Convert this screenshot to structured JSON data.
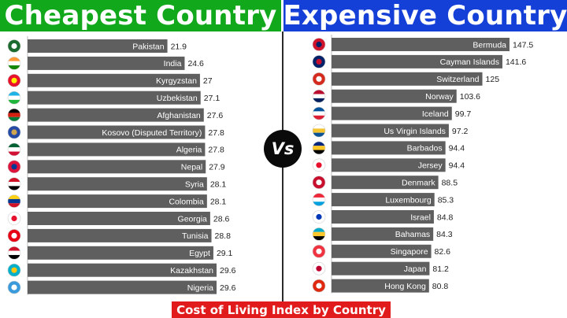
{
  "header": {
    "left_title": "Cheapest Country",
    "right_title": "Expensive Country",
    "vs_label": "Vs"
  },
  "footer": {
    "caption": "Cost of Living Index by Country"
  },
  "chart_data": [
    {
      "type": "bar",
      "orientation": "horizontal",
      "title": "Cheapest Country",
      "categories": [
        "Pakistan",
        "India",
        "Kyrgyzstan",
        "Uzbekistan",
        "Afghanistan",
        "Kosovo (Disputed Territory)",
        "Algeria",
        "Nepal",
        "Syria",
        "Colombia",
        "Georgia",
        "Tunisia",
        "Egypt",
        "Kazakhstan",
        "Nigeria"
      ],
      "values": [
        21.9,
        24.6,
        27,
        27.1,
        27.6,
        27.8,
        27.8,
        27.9,
        28.1,
        28.1,
        28.6,
        28.8,
        29.1,
        29.6,
        29.6
      ],
      "value_labels": [
        "21.9",
        "24.6",
        "27",
        "27.1",
        "27.6",
        "27.8",
        "27.8",
        "27.9",
        "28.1",
        "28.1",
        "28.6",
        "28.8",
        "29.1",
        "29.6",
        "29.6"
      ],
      "bar_color": "#5f5f5f",
      "flags": [
        {
          "country": "Pakistan",
          "icon": "pakistan-flag-icon",
          "colors": [
            "#1b6b2f",
            "#ffffff"
          ]
        },
        {
          "country": "India",
          "icon": "india-flag-icon",
          "colors": [
            "#ff9933",
            "#ffffff",
            "#138808"
          ]
        },
        {
          "country": "Kyrgyzstan",
          "icon": "kyrgyzstan-flag-icon",
          "colors": [
            "#e8112d",
            "#ffef00"
          ]
        },
        {
          "country": "Uzbekistan",
          "icon": "uzbekistan-flag-icon",
          "colors": [
            "#1eb3e6",
            "#ffffff",
            "#1eb53a"
          ]
        },
        {
          "country": "Afghanistan",
          "icon": "afghanistan-flag-icon",
          "colors": [
            "#000000",
            "#d32011",
            "#007a36"
          ]
        },
        {
          "country": "Kosovo (Disputed Territory)",
          "icon": "kosovo-flag-icon",
          "colors": [
            "#244aa5",
            "#d0a650"
          ]
        },
        {
          "country": "Algeria",
          "icon": "algeria-flag-icon",
          "colors": [
            "#006233",
            "#ffffff",
            "#d21034"
          ]
        },
        {
          "country": "Nepal",
          "icon": "nepal-flag-icon",
          "colors": [
            "#dc143c",
            "#003893"
          ]
        },
        {
          "country": "Syria",
          "icon": "syria-flag-icon",
          "colors": [
            "#ce1126",
            "#ffffff",
            "#000000"
          ]
        },
        {
          "country": "Colombia",
          "icon": "colombia-flag-icon",
          "colors": [
            "#fcd116",
            "#003893",
            "#ce1126"
          ]
        },
        {
          "country": "Georgia",
          "icon": "georgia-flag-icon",
          "colors": [
            "#ffffff",
            "#e8112d"
          ]
        },
        {
          "country": "Tunisia",
          "icon": "tunisia-flag-icon",
          "colors": [
            "#e70013",
            "#ffffff"
          ]
        },
        {
          "country": "Egypt",
          "icon": "egypt-flag-icon",
          "colors": [
            "#ce1126",
            "#ffffff",
            "#000000"
          ]
        },
        {
          "country": "Kazakhstan",
          "icon": "kazakhstan-flag-icon",
          "colors": [
            "#00afca",
            "#fec50c"
          ]
        },
        {
          "country": "Nigeria",
          "icon": "nigeria-flag-icon",
          "colors": [
            "#3a9bdc",
            "#ffffff"
          ]
        }
      ]
    },
    {
      "type": "bar",
      "orientation": "horizontal",
      "title": "Expensive Country",
      "categories": [
        "Bermuda",
        "Cayman Islands",
        "Switzerland",
        "Norway",
        "Iceland",
        "Us Virgin Islands",
        "Barbados",
        "Jersey",
        "Denmark",
        "Luxembourg",
        "Israel",
        "Bahamas",
        "Singapore",
        "Japan",
        "Hong Kong"
      ],
      "values": [
        147.5,
        141.6,
        125,
        103.6,
        99.7,
        97.2,
        94.4,
        94.4,
        88.5,
        85.3,
        84.8,
        84.3,
        82.6,
        81.2,
        80.8
      ],
      "value_labels": [
        "147.5",
        "141.6",
        "125",
        "103.6",
        "99.7",
        "97.2",
        "94.4",
        "94.4",
        "88.5",
        "85.3",
        "84.8",
        "84.3",
        "82.6",
        "81.2",
        "80.8"
      ],
      "bar_color": "#5f5f5f",
      "flags": [
        {
          "country": "Bermuda",
          "icon": "bermuda-flag-icon",
          "colors": [
            "#cf142b",
            "#012169"
          ]
        },
        {
          "country": "Cayman Islands",
          "icon": "cayman-islands-flag-icon",
          "colors": [
            "#012169",
            "#c8102e"
          ]
        },
        {
          "country": "Switzerland",
          "icon": "switzerland-flag-icon",
          "colors": [
            "#d52b1e",
            "#ffffff"
          ]
        },
        {
          "country": "Norway",
          "icon": "norway-flag-icon",
          "colors": [
            "#ba0c2f",
            "#ffffff",
            "#00205b"
          ]
        },
        {
          "country": "Iceland",
          "icon": "iceland-flag-icon",
          "colors": [
            "#02529c",
            "#ffffff",
            "#dc1e35"
          ]
        },
        {
          "country": "Us Virgin Islands",
          "icon": "us-virgin-islands-flag-icon",
          "colors": [
            "#ffffff",
            "#f4c430",
            "#0b5394"
          ]
        },
        {
          "country": "Barbados",
          "icon": "barbados-flag-icon",
          "colors": [
            "#00267f",
            "#ffc726",
            "#000000"
          ]
        },
        {
          "country": "Jersey",
          "icon": "jersey-flag-icon",
          "colors": [
            "#ffffff",
            "#e8112d"
          ]
        },
        {
          "country": "Denmark",
          "icon": "denmark-flag-icon",
          "colors": [
            "#c8102e",
            "#ffffff"
          ]
        },
        {
          "country": "Luxembourg",
          "icon": "luxembourg-flag-icon",
          "colors": [
            "#ed2939",
            "#ffffff",
            "#00a1de"
          ]
        },
        {
          "country": "Israel",
          "icon": "israel-flag-icon",
          "colors": [
            "#ffffff",
            "#0038b8"
          ]
        },
        {
          "country": "Bahamas",
          "icon": "bahamas-flag-icon",
          "colors": [
            "#00abc9",
            "#ffc72c",
            "#000000"
          ]
        },
        {
          "country": "Singapore",
          "icon": "singapore-flag-icon",
          "colors": [
            "#ef3340",
            "#ffffff"
          ]
        },
        {
          "country": "Japan",
          "icon": "japan-flag-icon",
          "colors": [
            "#ffffff",
            "#bc002d"
          ]
        },
        {
          "country": "Hong Kong",
          "icon": "hong-kong-flag-icon",
          "colors": [
            "#de2910",
            "#ffffff"
          ]
        }
      ]
    }
  ]
}
